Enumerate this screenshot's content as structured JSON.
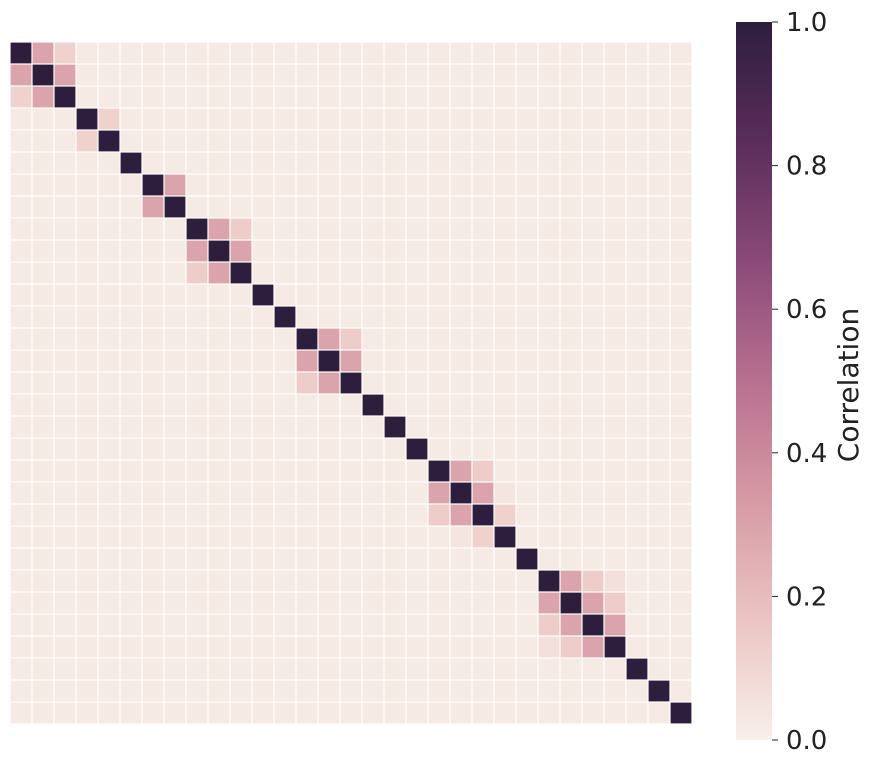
{
  "chart_data": {
    "type": "heatmap",
    "n": 31,
    "blocks": [
      {
        "start": 0,
        "size": 3,
        "near": 0.3,
        "far": 0.12
      },
      {
        "start": 3,
        "size": 2,
        "near": 0.12
      },
      {
        "start": 5,
        "size": 1
      },
      {
        "start": 6,
        "size": 2,
        "near": 0.3
      },
      {
        "start": 8,
        "size": 3,
        "near": 0.3,
        "far": 0.14
      },
      {
        "start": 11,
        "size": 1
      },
      {
        "start": 12,
        "size": 1
      },
      {
        "start": 13,
        "size": 3,
        "near": 0.3,
        "far": 0.14
      },
      {
        "start": 16,
        "size": 1
      },
      {
        "start": 17,
        "size": 1
      },
      {
        "start": 18,
        "size": 1
      },
      {
        "start": 19,
        "size": 3,
        "near": 0.3,
        "far": 0.14
      },
      {
        "start": 22,
        "size": 1
      },
      {
        "start": 23,
        "size": 1
      },
      {
        "start": 24,
        "size": 4,
        "near": 0.3,
        "far": 0.14,
        "farther": 0.06
      },
      {
        "start": 28,
        "size": 1
      },
      {
        "start": 29,
        "size": 1
      },
      {
        "start": 30,
        "size": 1
      }
    ],
    "extra_cells": [
      {
        "row": 21,
        "col": 22,
        "value": 0.12
      },
      {
        "row": 22,
        "col": 21,
        "value": 0.12
      },
      {
        "row": 20,
        "col": 22,
        "value": 0.04
      },
      {
        "row": 22,
        "col": 20,
        "value": 0.04
      }
    ],
    "background": 0.02,
    "colorbar": {
      "label": "Correlation",
      "range": [
        0.0,
        1.0
      ],
      "ticks": [
        "0.0",
        "0.2",
        "0.4",
        "0.6",
        "0.8",
        "1.0"
      ]
    },
    "colormap": [
      "#f8efea",
      "#ebc5c3",
      "#d79aa5",
      "#b8708f",
      "#8b4a78",
      "#5a2d5a",
      "#2d1e3e"
    ],
    "gridline_color": "#ffffff",
    "xlabel": "",
    "ylabel": ""
  }
}
